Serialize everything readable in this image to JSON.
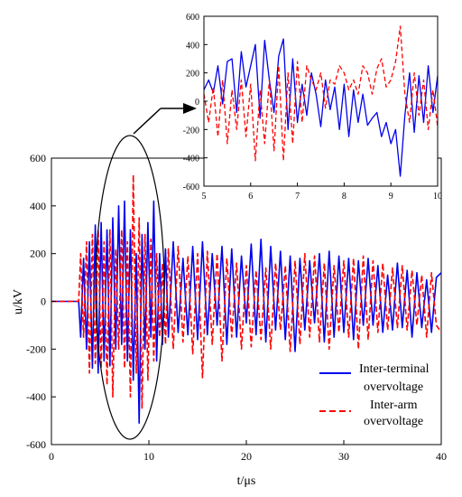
{
  "chart_data": [
    {
      "type": "line",
      "id": "main",
      "title": "",
      "xlabel": "t/μs",
      "ylabel": "u/kV",
      "xlim": [
        0,
        40
      ],
      "ylim": [
        -600,
        600
      ],
      "xticks": [
        0,
        10,
        20,
        30,
        40
      ],
      "yticks": [
        -600,
        -400,
        -200,
        0,
        200,
        400,
        600
      ],
      "grid": false,
      "legend_position": "bottom-right",
      "series": [
        {
          "name": "Inter-terminal overvoltage",
          "color": "#0000ee",
          "style": "solid",
          "x": [
            0,
            1,
            2,
            2.5,
            2.8,
            3.0,
            3.3,
            3.6,
            3.9,
            4.2,
            4.5,
            4.8,
            5.1,
            5.4,
            5.7,
            6.0,
            6.3,
            6.6,
            6.9,
            7.2,
            7.5,
            7.8,
            8.1,
            8.4,
            8.7,
            9.0,
            9.3,
            9.6,
            9.9,
            10.2,
            10.5,
            10.8,
            11.1,
            11.4,
            11.7,
            12.0,
            12.5,
            13.0,
            13.5,
            14.0,
            14.5,
            15.0,
            15.5,
            16.0,
            16.5,
            17.0,
            17.5,
            18.0,
            18.5,
            19.0,
            19.5,
            20.0,
            20.5,
            21.0,
            21.5,
            22.0,
            22.5,
            23.0,
            23.5,
            24.0,
            24.5,
            25.0,
            25.5,
            26.0,
            26.5,
            27.0,
            27.5,
            28.0,
            28.5,
            29.0,
            29.5,
            30.0,
            30.5,
            31.0,
            31.5,
            32.0,
            32.5,
            33.0,
            33.5,
            34.0,
            34.5,
            35.0,
            35.5,
            36.0,
            36.5,
            37.0,
            37.5,
            38.0,
            38.5,
            39.0,
            39.5,
            40.0
          ],
          "y": [
            0,
            0,
            0,
            0,
            0,
            -150,
            180,
            -200,
            250,
            -280,
            320,
            -300,
            330,
            -250,
            300,
            -270,
            350,
            -200,
            400,
            -180,
            420,
            -250,
            300,
            -330,
            200,
            -510,
            280,
            -200,
            330,
            -150,
            420,
            -250,
            200,
            -180,
            220,
            -150,
            250,
            -130,
            180,
            -140,
            230,
            -160,
            250,
            -140,
            200,
            -100,
            230,
            -180,
            220,
            -150,
            190,
            -90,
            240,
            -140,
            260,
            -170,
            230,
            -120,
            210,
            -160,
            190,
            -210,
            180,
            -120,
            170,
            -90,
            200,
            -170,
            210,
            -150,
            190,
            -130,
            180,
            -160,
            170,
            -100,
            180,
            -100,
            150,
            -130,
            110,
            -120,
            160,
            -110,
            130,
            -150,
            120,
            -110,
            90,
            -130,
            100,
            120
          ]
        },
        {
          "name": "Inter-arm overvoltage",
          "color": "#ff0000",
          "style": "dashed",
          "x": [
            0,
            1,
            2,
            2.5,
            2.8,
            3.0,
            3.3,
            3.6,
            3.9,
            4.2,
            4.5,
            4.8,
            5.1,
            5.4,
            5.7,
            6.0,
            6.3,
            6.6,
            6.9,
            7.2,
            7.5,
            7.8,
            8.1,
            8.4,
            8.7,
            9.0,
            9.3,
            9.6,
            9.9,
            10.2,
            10.5,
            10.8,
            11.1,
            11.4,
            11.7,
            12.0,
            12.5,
            13.0,
            13.5,
            14.0,
            14.5,
            15.0,
            15.5,
            16.0,
            16.5,
            17.0,
            17.5,
            18.0,
            18.5,
            19.0,
            19.5,
            20.0,
            20.5,
            21.0,
            21.5,
            22.0,
            22.5,
            23.0,
            23.5,
            24.0,
            24.5,
            25.0,
            25.5,
            26.0,
            26.5,
            27.0,
            27.5,
            28.0,
            28.5,
            29.0,
            29.5,
            30.0,
            30.5,
            31.0,
            31.5,
            32.0,
            32.5,
            33.0,
            33.5,
            34.0,
            34.5,
            35.0,
            35.5,
            36.0,
            36.5,
            37.0,
            37.5,
            38.0,
            38.5,
            39.0,
            39.5,
            40.0
          ],
          "y": [
            0,
            0,
            0,
            0,
            0,
            200,
            -150,
            250,
            -300,
            280,
            -260,
            300,
            -280,
            250,
            -350,
            300,
            -400,
            220,
            -200,
            300,
            -280,
            250,
            -400,
            530,
            -300,
            350,
            -450,
            280,
            -330,
            260,
            -250,
            200,
            -150,
            160,
            -180,
            220,
            -200,
            230,
            -170,
            190,
            -220,
            200,
            -320,
            210,
            -180,
            200,
            -250,
            180,
            -150,
            160,
            -200,
            150,
            -190,
            130,
            -160,
            140,
            -200,
            160,
            -120,
            150,
            -210,
            170,
            -180,
            200,
            -150,
            190,
            -170,
            160,
            -200,
            150,
            -130,
            170,
            -150,
            180,
            -200,
            190,
            -160,
            170,
            -130,
            160,
            -120,
            140,
            -110,
            150,
            -120,
            130,
            -100,
            110,
            -150,
            120,
            -100,
            -130
          ]
        }
      ]
    },
    {
      "type": "line",
      "id": "inset",
      "title": "",
      "xlim": [
        5,
        10
      ],
      "ylim": [
        -600,
        600
      ],
      "xticks": [
        5,
        6,
        7,
        8,
        9,
        10
      ],
      "yticks": [
        -600,
        -400,
        -200,
        0,
        200,
        400,
        600
      ],
      "grid": false,
      "series": [
        {
          "color": "#0000ee",
          "style": "solid",
          "x": [
            5.0,
            5.1,
            5.2,
            5.3,
            5.4,
            5.5,
            5.6,
            5.7,
            5.8,
            5.9,
            6.0,
            6.1,
            6.2,
            6.3,
            6.4,
            6.5,
            6.6,
            6.7,
            6.8,
            6.9,
            7.0,
            7.1,
            7.2,
            7.3,
            7.4,
            7.5,
            7.6,
            7.7,
            7.8,
            7.9,
            8.0,
            8.1,
            8.2,
            8.3,
            8.4,
            8.5,
            8.6,
            8.7,
            8.8,
            8.9,
            9.0,
            9.1,
            9.2,
            9.3,
            9.4,
            9.5,
            9.6,
            9.7,
            9.8,
            9.9,
            10.0
          ],
          "y": [
            80,
            150,
            60,
            250,
            -20,
            280,
            300,
            -80,
            350,
            100,
            250,
            400,
            -120,
            430,
            150,
            -80,
            320,
            440,
            -200,
            300,
            -150,
            120,
            -100,
            200,
            50,
            -180,
            150,
            -60,
            100,
            -200,
            120,
            -250,
            80,
            -150,
            50,
            -170,
            -120,
            -80,
            -250,
            -150,
            -300,
            -200,
            -530,
            -100,
            200,
            -220,
            180,
            -150,
            250,
            -80,
            180
          ]
        },
        {
          "color": "#ff0000",
          "style": "dashed",
          "x": [
            5.0,
            5.1,
            5.2,
            5.3,
            5.4,
            5.5,
            5.6,
            5.7,
            5.8,
            5.9,
            6.0,
            6.1,
            6.2,
            6.3,
            6.4,
            6.5,
            6.6,
            6.7,
            6.8,
            6.9,
            7.0,
            7.1,
            7.2,
            7.3,
            7.4,
            7.5,
            7.6,
            7.7,
            7.8,
            7.9,
            8.0,
            8.1,
            8.2,
            8.3,
            8.4,
            8.5,
            8.6,
            8.7,
            8.8,
            8.9,
            9.0,
            9.1,
            9.2,
            9.3,
            9.4,
            9.5,
            9.6,
            9.7,
            9.8,
            9.9,
            10.0
          ],
          "y": [
            50,
            -150,
            100,
            -250,
            150,
            -300,
            80,
            -200,
            150,
            -250,
            120,
            -420,
            80,
            -300,
            150,
            -350,
            250,
            -420,
            200,
            -300,
            280,
            -150,
            250,
            150,
            80,
            200,
            -50,
            150,
            120,
            250,
            200,
            80,
            150,
            50,
            250,
            200,
            50,
            230,
            300,
            100,
            150,
            280,
            530,
            50,
            -150,
            200,
            -100,
            150,
            -200,
            80,
            -180
          ]
        }
      ]
    }
  ],
  "legend": [
    {
      "line1": "Inter-terminal",
      "line2": "overvoltage",
      "color": "#0000ee",
      "style": "solid"
    },
    {
      "line1": "Inter-arm",
      "line2": "overvoltage",
      "color": "#ff0000",
      "style": "dashed"
    }
  ]
}
